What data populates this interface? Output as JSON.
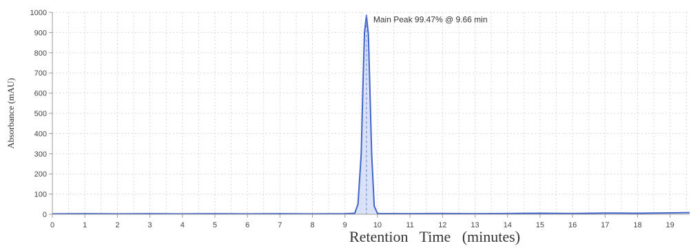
{
  "chart_data": {
    "type": "line",
    "title": "",
    "xlabel": "Retention   Time   (minutes)",
    "ylabel": "Absorbance (mAU)",
    "xlim": [
      0,
      19.6
    ],
    "ylim": [
      0,
      1000
    ],
    "x_ticks": [
      "0",
      "1",
      "2",
      "3",
      "4",
      "5",
      "6",
      "7",
      "8",
      "9",
      "10",
      "11",
      "12",
      "13",
      "14",
      "15",
      "16",
      "17",
      "18",
      "19"
    ],
    "y_ticks": [
      "0",
      "100",
      "200",
      "300",
      "400",
      "500",
      "600",
      "700",
      "800",
      "900",
      "1000"
    ],
    "grid": true,
    "series": [
      {
        "x": [
          0,
          1,
          2,
          3,
          4,
          5,
          6,
          7,
          8,
          9,
          9.3,
          9.4,
          9.5,
          9.55,
          9.6,
          9.66,
          9.72,
          9.77,
          9.82,
          9.9,
          10,
          11,
          12,
          13,
          14,
          15,
          16,
          17,
          18,
          19,
          19.6
        ],
        "y": [
          2,
          3,
          2,
          3,
          2,
          3,
          2,
          3,
          2,
          3,
          5,
          50,
          300,
          620,
          900,
          985,
          890,
          600,
          300,
          40,
          4,
          3,
          4,
          3,
          4,
          5,
          4,
          6,
          5,
          7,
          8
        ]
      }
    ],
    "annotations": [
      {
        "text": "Main Peak 99.47% @ 9.66 min",
        "x": 9.66,
        "y": 985
      }
    ],
    "colors": {
      "line": "#3f63c9",
      "fill": "#c9d6f5",
      "grid": "#d8d8d8",
      "marker": "#7f93d6"
    }
  }
}
